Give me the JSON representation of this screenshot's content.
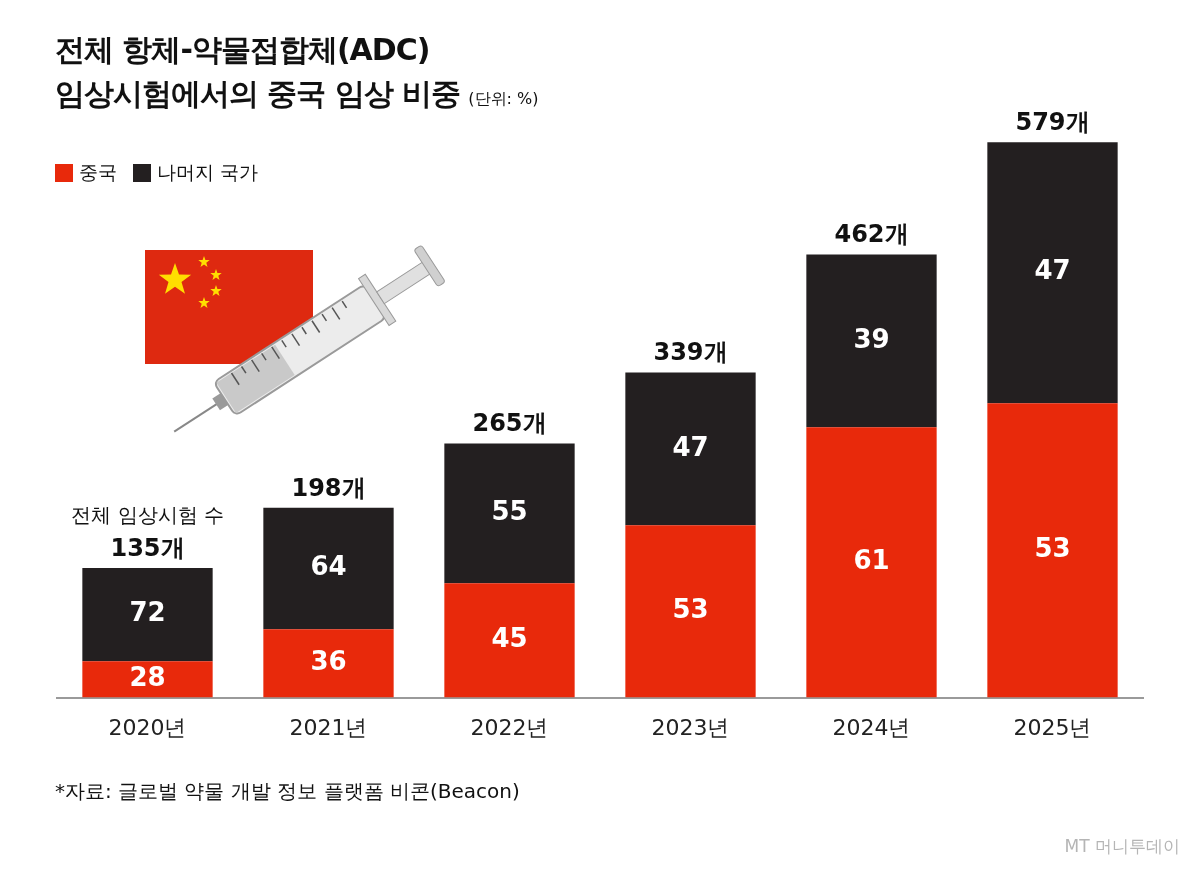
{
  "chart_data": {
    "type": "bar",
    "title": [
      "전체 항체-약물접합체(ADC)",
      "임상시험에서의 중국 임상 비중"
    ],
    "subtitle": "(단위: %)",
    "categories": [
      "2020년",
      "2021년",
      "2022년",
      "2023년",
      "2024년",
      "2025년"
    ],
    "totals": [
      135,
      198,
      265,
      339,
      462,
      579
    ],
    "totals_labels": [
      "135개",
      "198개",
      "265개",
      "339개",
      "462개",
      "579개"
    ],
    "annotation": {
      "text": "전체 임상시험 수",
      "category": "2020년"
    },
    "series": [
      {
        "name": "중국",
        "color": "#e8290b",
        "values": [
          28,
          36,
          45,
          53,
          61,
          53
        ]
      },
      {
        "name": "나머지 국가",
        "color": "#231f20",
        "values": [
          72,
          64,
          55,
          47,
          39,
          47
        ]
      }
    ],
    "stacked": true,
    "data_labels": true,
    "tick_labels": "x",
    "grid": false,
    "legend": "top-left",
    "ylim": [
      0,
      600
    ],
    "source": "*자료: 글로벌 약물 개발 정보 플랫폼 비콘(Beacon)",
    "credit": "MT 머니투데이"
  }
}
